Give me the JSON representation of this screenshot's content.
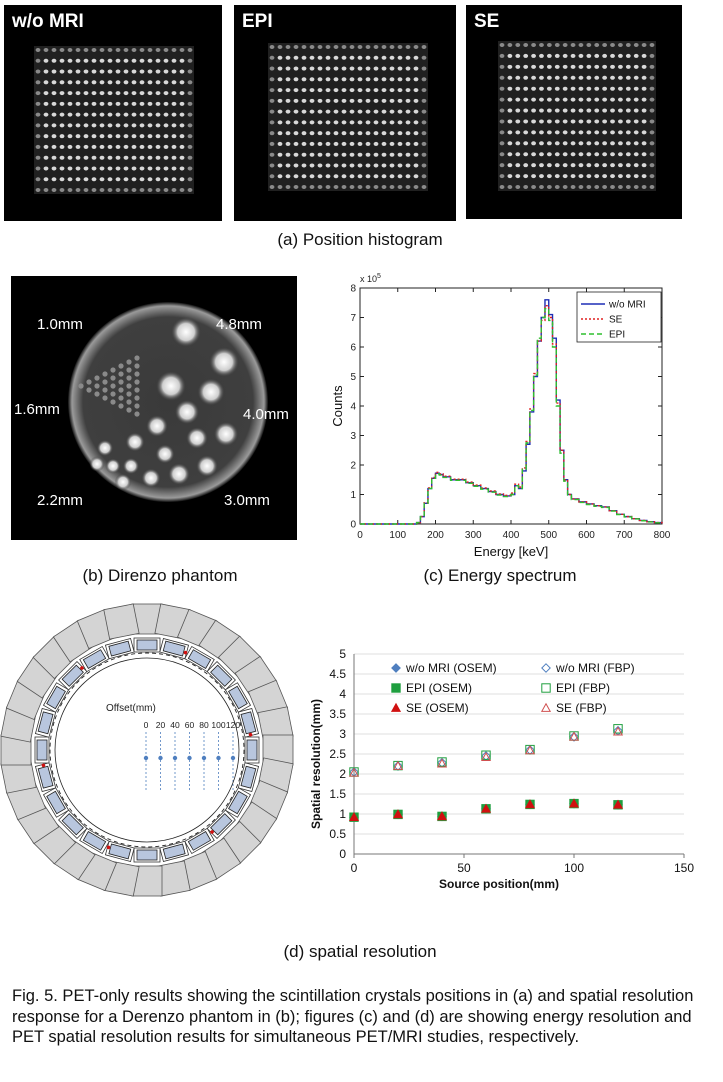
{
  "histograms": [
    {
      "label": "w/o MRI"
    },
    {
      "label": "EPI"
    },
    {
      "label": "SE"
    }
  ],
  "captions": {
    "a": "(a) Position histogram",
    "b": "(b) Direnzo phantom",
    "c": "(c) Energy spectrum",
    "d": "(d) spatial resolution"
  },
  "phantom": {
    "labels": [
      "1.0mm",
      "4.8mm",
      "1.6mm",
      "4.0mm",
      "2.2mm",
      "3.0mm"
    ]
  },
  "ring_diagram": {
    "offset_label": "Offset(mm)",
    "offsets": [
      "0",
      "20",
      "40",
      "60",
      "80",
      "100",
      "120"
    ]
  },
  "figure_caption": "Fig. 5. PET-only results showing the scintillation crystals positions in (a) and spatial resolution response for a Derenzo phantom in (b); figures (c) and (d) are showing energy resolution and PET spatial resolution results for simultaneous PET/MRI studies, respectively.",
  "chart_data": [
    {
      "type": "line",
      "title": "",
      "xlabel": "Energy [keV]",
      "ylabel": "Counts",
      "y_multiplier_label": "x 10",
      "y_multiplier_exp": "5",
      "xlim": [
        0,
        800
      ],
      "ylim": [
        0,
        8
      ],
      "xticks": [
        "0",
        "100",
        "200",
        "300",
        "400",
        "500",
        "600",
        "700",
        "800"
      ],
      "yticks": [
        "0",
        "1",
        "2",
        "3",
        "4",
        "5",
        "6",
        "7",
        "8"
      ],
      "x": [
        0,
        100,
        150,
        160,
        170,
        180,
        190,
        200,
        210,
        220,
        240,
        260,
        280,
        300,
        320,
        340,
        360,
        380,
        400,
        410,
        420,
        430,
        440,
        450,
        460,
        470,
        480,
        490,
        500,
        510,
        520,
        530,
        540,
        550,
        560,
        580,
        600,
        620,
        640,
        660,
        680,
        700,
        720,
        740,
        760,
        780,
        800
      ],
      "series": [
        {
          "name": "w/o MRI",
          "color": "#1f2fb5",
          "dash": "",
          "values": [
            0,
            0,
            0.05,
            0.25,
            0.7,
            1.2,
            1.55,
            1.72,
            1.68,
            1.6,
            1.5,
            1.5,
            1.4,
            1.3,
            1.2,
            1.1,
            1.0,
            0.95,
            1.0,
            1.3,
            1.2,
            1.8,
            2.7,
            3.8,
            5.0,
            6.2,
            7.0,
            7.6,
            7.1,
            6.3,
            4.2,
            2.5,
            1.5,
            1.0,
            0.85,
            0.75,
            0.68,
            0.62,
            0.58,
            0.45,
            0.33,
            0.25,
            0.18,
            0.12,
            0.08,
            0.05,
            0.02
          ]
        },
        {
          "name": "SE",
          "color": "#e02020",
          "dash": "2,2",
          "values": [
            0,
            0,
            0.05,
            0.25,
            0.72,
            1.22,
            1.58,
            1.75,
            1.7,
            1.62,
            1.52,
            1.52,
            1.42,
            1.32,
            1.22,
            1.12,
            1.02,
            0.97,
            1.05,
            1.35,
            1.25,
            1.9,
            2.8,
            3.9,
            5.1,
            6.2,
            6.9,
            7.4,
            7.0,
            6.1,
            4.1,
            2.5,
            1.5,
            1.0,
            0.85,
            0.75,
            0.68,
            0.62,
            0.58,
            0.45,
            0.33,
            0.25,
            0.18,
            0.12,
            0.08,
            0.05,
            0.02
          ]
        },
        {
          "name": "EPI",
          "color": "#2fbf2f",
          "dash": "5,3",
          "values": [
            0,
            0,
            0.05,
            0.25,
            0.7,
            1.2,
            1.55,
            1.7,
            1.66,
            1.58,
            1.48,
            1.48,
            1.38,
            1.28,
            1.18,
            1.08,
            0.98,
            0.93,
            1.0,
            1.3,
            1.2,
            1.85,
            2.75,
            3.85,
            5.05,
            6.3,
            7.0,
            7.3,
            6.9,
            6.0,
            4.0,
            2.4,
            1.45,
            0.98,
            0.83,
            0.73,
            0.66,
            0.6,
            0.56,
            0.44,
            0.32,
            0.24,
            0.17,
            0.11,
            0.07,
            0.04,
            0.02
          ]
        }
      ]
    },
    {
      "type": "scatter",
      "title": "",
      "xlabel": "Source position(mm)",
      "ylabel": "Spatial resolution(mm)",
      "xlim": [
        0,
        150
      ],
      "ylim": [
        0,
        5
      ],
      "xticks": [
        "0",
        "50",
        "100",
        "150"
      ],
      "yticks": [
        "0",
        "0.5",
        "1",
        "1.5",
        "2",
        "2.5",
        "3",
        "3.5",
        "4",
        "4.5",
        "5"
      ],
      "x": [
        0,
        20,
        40,
        60,
        80,
        100,
        120
      ],
      "series": [
        {
          "name": "w/o MRI (OSEM)",
          "marker": "diamond-filled",
          "color": "#4f7fbf",
          "values": [
            0.92,
            0.99,
            0.94,
            1.13,
            1.24,
            1.26,
            1.23
          ]
        },
        {
          "name": "w/o MRI (FBP)",
          "marker": "diamond-open",
          "color": "#4f7fbf",
          "values": [
            2.05,
            2.2,
            2.28,
            2.45,
            2.6,
            2.93,
            3.08
          ]
        },
        {
          "name": "EPI (OSEM)",
          "marker": "square-filled",
          "color": "#1f9f3f",
          "values": [
            0.92,
            0.99,
            0.94,
            1.13,
            1.24,
            1.26,
            1.23
          ]
        },
        {
          "name": "EPI (FBP)",
          "marker": "square-open",
          "color": "#1f9f3f",
          "values": [
            2.05,
            2.21,
            2.3,
            2.47,
            2.61,
            2.95,
            3.13
          ]
        },
        {
          "name": "SE (OSEM)",
          "marker": "triangle-filled",
          "color": "#d01010",
          "values": [
            0.92,
            0.99,
            0.94,
            1.13,
            1.24,
            1.26,
            1.23
          ]
        },
        {
          "name": "SE (FBP)",
          "marker": "triangle-open",
          "color": "#d05050",
          "values": [
            2.03,
            2.2,
            2.26,
            2.42,
            2.59,
            2.93,
            3.06
          ]
        }
      ]
    }
  ]
}
